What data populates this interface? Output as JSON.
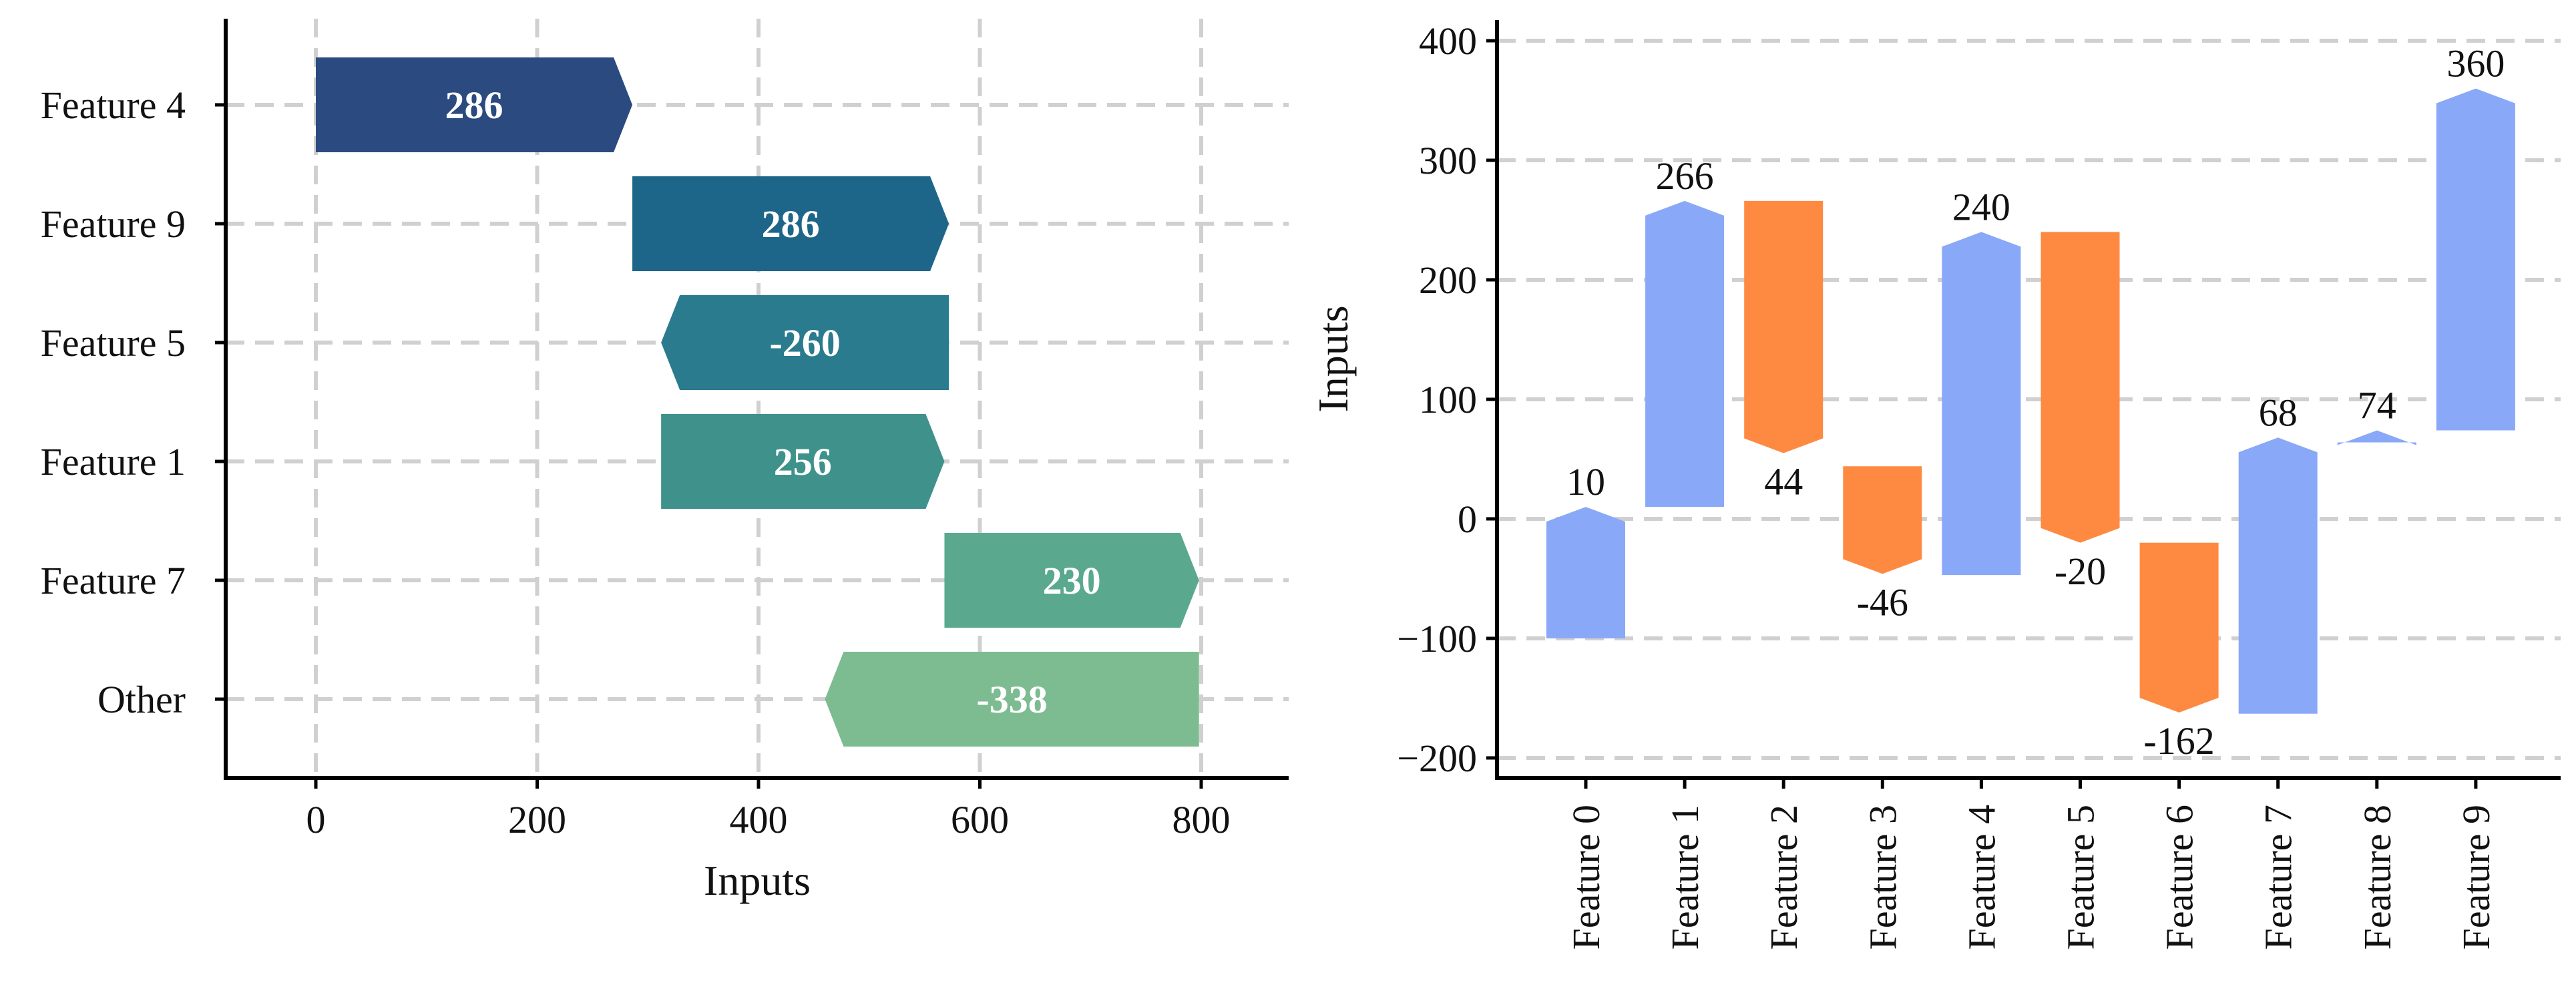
{
  "chart_data": [
    {
      "type": "bar",
      "orientation": "horizontal",
      "categories": [
        "Feature 4",
        "Feature 9",
        "Feature 5",
        "Feature 1",
        "Feature 7",
        "Other"
      ],
      "values": [
        286,
        286,
        -260,
        256,
        230,
        -338
      ],
      "value_labels": [
        "286",
        "286",
        "-260",
        "256",
        "230",
        "-338"
      ],
      "bar_starts": [
        0,
        286,
        572,
        312,
        568,
        798
      ],
      "bar_colors": [
        "#2a4a80",
        "#1e6689",
        "#2a7b8d",
        "#3f918b",
        "#5aa98f",
        "#7dbb91"
      ],
      "xlabel": "Inputs",
      "ylabel": "",
      "xlim": [
        -80,
        880
      ],
      "xticks": [
        0,
        200,
        400,
        600,
        800
      ],
      "xtick_labels": [
        "0",
        "200",
        "400",
        "600",
        "800"
      ],
      "grid": true
    },
    {
      "type": "bar",
      "orientation": "vertical",
      "categories": [
        "Feature 0",
        "Feature 1",
        "Feature 2",
        "Feature 3",
        "Feature 4",
        "Feature 5",
        "Feature 6",
        "Feature 7",
        "Feature 8",
        "Feature 9"
      ],
      "values": [
        10,
        266,
        44,
        -46,
        240,
        -20,
        -162,
        68,
        74,
        360
      ],
      "value_labels": [
        "10",
        "266",
        "44",
        "-46",
        "240",
        "-20",
        "-162",
        "68",
        "74",
        "360"
      ],
      "bar_low": [
        -100,
        10,
        55,
        -46,
        -47,
        -20,
        -162,
        -163,
        64,
        74
      ],
      "bar_high": [
        10,
        266,
        266,
        44,
        240,
        240,
        -20,
        68,
        74,
        360
      ],
      "direction": [
        "up",
        "up",
        "down",
        "down",
        "up",
        "down",
        "down",
        "up",
        "up",
        "up"
      ],
      "colors": {
        "increase": "#8aa8f8",
        "decrease": "#fe8a42"
      },
      "xlabel": "",
      "ylabel": "Inputs",
      "ylim": [
        -215,
        415
      ],
      "yticks": [
        -200,
        -100,
        0,
        100,
        200,
        300,
        400
      ],
      "ytick_labels": [
        "−200",
        "−100",
        "0",
        "100",
        "200",
        "300",
        "400"
      ],
      "grid": true
    }
  ]
}
